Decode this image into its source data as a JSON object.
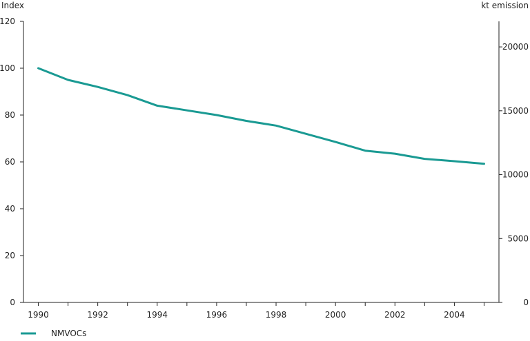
{
  "chart_data": {
    "type": "line",
    "left_axis": {
      "label": "Index",
      "ylim": [
        0,
        120
      ],
      "ticks": [
        0,
        20,
        40,
        60,
        80,
        100,
        120
      ]
    },
    "right_axis": {
      "label": "kt emission",
      "ylim": [
        0,
        22000
      ],
      "ticks": [
        0,
        5000,
        10000,
        15000,
        20000
      ]
    },
    "x_ticks": [
      1990,
      1992,
      1994,
      1996,
      1998,
      2000,
      2002,
      2004
    ],
    "xlim": [
      1989.5,
      2005.5
    ],
    "series": [
      {
        "name": "NMVOCs",
        "color": "#1a9a93",
        "x": [
          1990,
          1991,
          1992,
          1993,
          1994,
          1995,
          1996,
          1997,
          1998,
          1999,
          2000,
          2001,
          2002,
          2003,
          2004,
          2005
        ],
        "values": [
          100,
          95,
          92,
          88.5,
          84,
          82,
          80,
          77.5,
          75.5,
          72,
          68.5,
          64.8,
          63.5,
          61.3,
          60.3,
          59.2
        ]
      }
    ],
    "legend": "bottom-left",
    "grid": false
  }
}
